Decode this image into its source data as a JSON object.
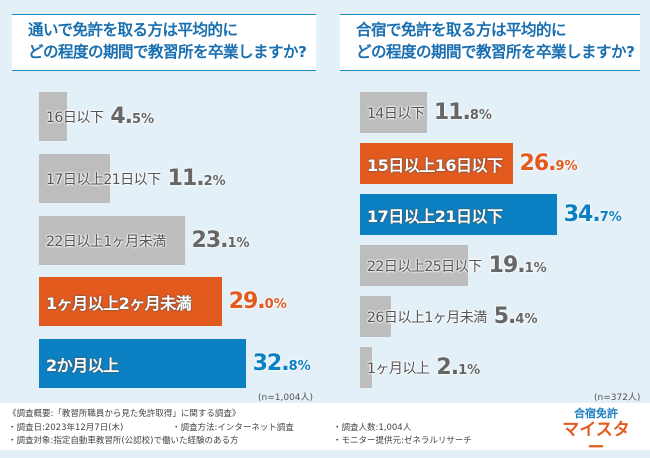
{
  "left": {
    "title_line1": "通いで免許を取る方は平均的に",
    "title_line2": "どの程度の期間で教習所を卒業しますか?",
    "n": "(n=1,004人)",
    "rows": [
      {
        "label": "16日以下",
        "int": "4.",
        "dec": "5%",
        "value": 4.5,
        "color": "gray"
      },
      {
        "label": "17日以上21日以下",
        "int": "11.",
        "dec": "2%",
        "value": 11.2,
        "color": "gray"
      },
      {
        "label": "22日以上1ヶ月未満",
        "int": "23.",
        "dec": "1%",
        "value": 23.1,
        "color": "gray"
      },
      {
        "label": "1ヶ月以上2ヶ月未満",
        "int": "29.",
        "dec": "0%",
        "value": 29.0,
        "color": "orange"
      },
      {
        "label": "2か月以上",
        "int": "32.",
        "dec": "8%",
        "value": 32.8,
        "color": "blue"
      }
    ]
  },
  "right": {
    "title_line1": "合宿で免許を取る方は平均的に",
    "title_line2": "どの程度の期間で教習所を卒業しますか?",
    "n": "(n=372人)",
    "rows": [
      {
        "label": "14日以下",
        "int": "11.",
        "dec": "8%",
        "value": 11.8,
        "color": "gray"
      },
      {
        "label": "15日以上16日以下",
        "int": "26.",
        "dec": "9%",
        "value": 26.9,
        "color": "orange"
      },
      {
        "label": "17日以上21日以下",
        "int": "34.",
        "dec": "7%",
        "value": 34.7,
        "color": "blue"
      },
      {
        "label": "22日以上25日以下",
        "int": "19.",
        "dec": "1%",
        "value": 19.1,
        "color": "gray"
      },
      {
        "label": "26日以上1ヶ月未満",
        "int": "5.",
        "dec": "4%",
        "value": 5.4,
        "color": "gray"
      },
      {
        "label": "1ヶ月以上",
        "int": "2.",
        "dec": "1%",
        "value": 2.1,
        "color": "gray"
      }
    ]
  },
  "colors": {
    "orange": "#e35a1e",
    "blue": "#0b80c2",
    "gray": "#bdbdbd",
    "title": "#1a6fb0"
  },
  "footer": {
    "summary": "《調査概要:「教習所職員から見た免許取得」に関する調査》",
    "date": "・調査日:2023年12月7日(木)",
    "method": "・調査方法:インターネット調査",
    "count": "・調査人数:1,004人",
    "target": "・調査対象:指定自動車教習所(公認校)で働いた経験のある方",
    "provider": "・モニター提供元:ゼネラルリサーチ"
  },
  "logo": {
    "line1": "合宿免許",
    "line2": "マイスター"
  }
}
